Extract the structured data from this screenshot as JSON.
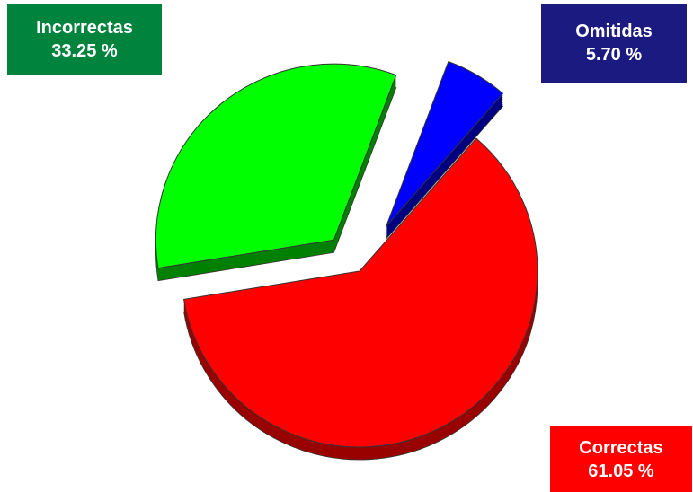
{
  "chart_data": {
    "type": "pie",
    "slices": [
      {
        "category": "Correctas",
        "value": 61.05,
        "value_label": "61.05 %",
        "color": "#ff0000",
        "side_color": "#990000"
      },
      {
        "category": "Incorrectas",
        "value": 33.25,
        "value_label": "33.25 %",
        "color": "#00ff00",
        "side_color": "#008000"
      },
      {
        "category": "Omitidas",
        "value": 5.7,
        "value_label": "5.70 %",
        "color": "#0000ff",
        "side_color": "#000080"
      }
    ],
    "exploded": true,
    "three_d": true,
    "label_box_colors": {
      "Incorrectas": "#00843d",
      "Omitidas": "#1a1a80",
      "Correctas": "#ff0000"
    }
  }
}
